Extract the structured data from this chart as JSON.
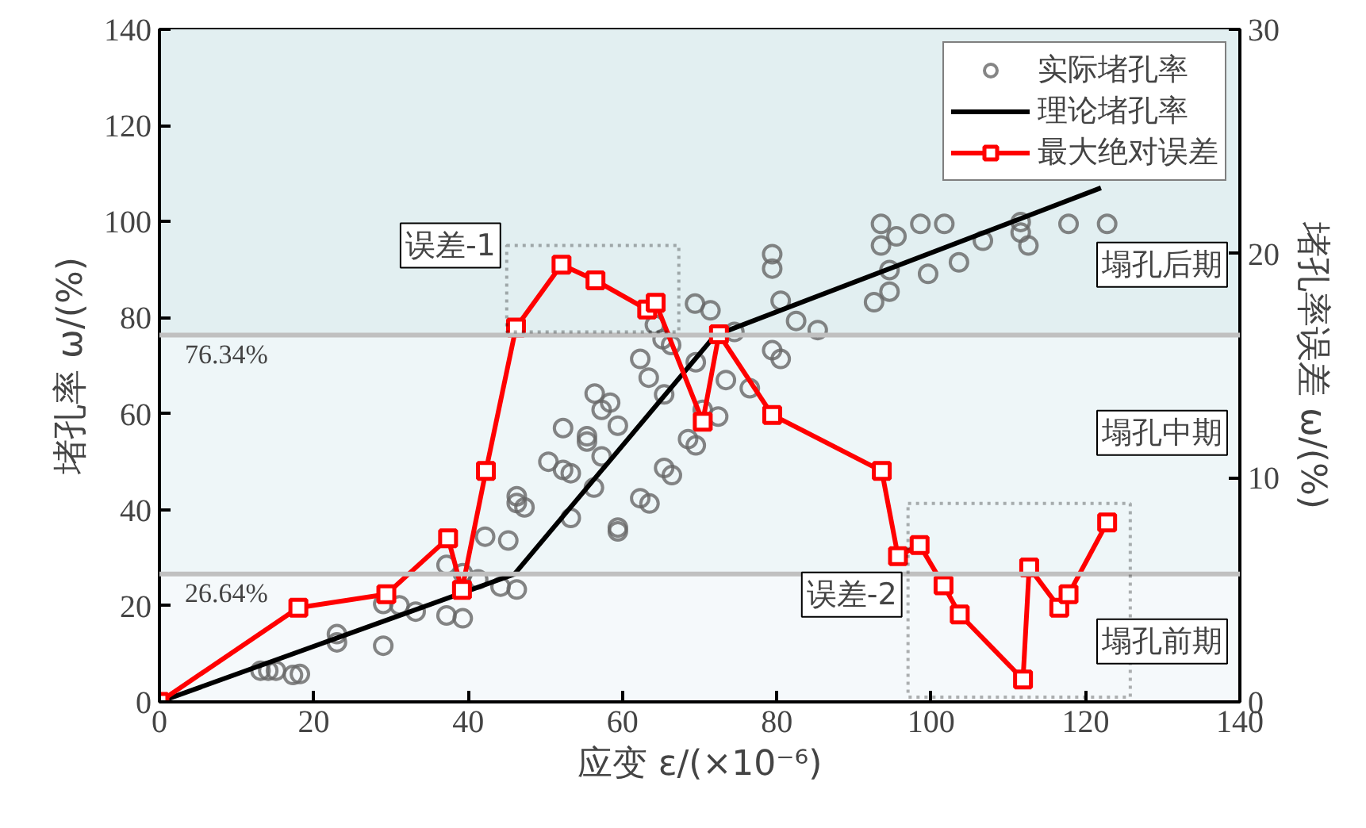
{
  "chart_data": {
    "type": "scatter",
    "xlabel": "应变 ε/(×10⁻⁶)",
    "ylabel": "堵孔率 ω/(%)",
    "y2label": "堵孔率误差 ω/(%)",
    "xlim": [
      0,
      140
    ],
    "xticks": [
      0,
      20,
      40,
      60,
      80,
      100,
      120,
      140
    ],
    "ylim": [
      0,
      140
    ],
    "yticks": [
      0,
      20,
      40,
      60,
      80,
      100,
      120,
      140
    ],
    "y2lim": [
      0,
      30
    ],
    "y2ticks": [
      0,
      10,
      20,
      30
    ],
    "legend": "top right",
    "series": [
      {
        "name": "实际堵孔率",
        "marker": "circle",
        "color": "#666666",
        "x": [
          13.1,
          14.1,
          15.1,
          17.3,
          18.2,
          23.0,
          23.0,
          29.0,
          29.0,
          31.1,
          33.2,
          37.2,
          37.2,
          39.3,
          39.3,
          41.3,
          42.2,
          45.2,
          44.2,
          46.3,
          46.3,
          46.3,
          47.3,
          50.4,
          52.3,
          52.3,
          53.3,
          55.4,
          55.4,
          56.4,
          57.3,
          58.4,
          59.4,
          57.3,
          56.3,
          53.3,
          59.4,
          59.4,
          62.3,
          63.5,
          65.4,
          66.4,
          62.3,
          63.4,
          65.4,
          64.2,
          65.2,
          66.3,
          68.5,
          69.5,
          69.4,
          71.4,
          69.5,
          70.4,
          72.4,
          73.4,
          74.5,
          76.5,
          79.4,
          79.4,
          80.5,
          82.5,
          79.4,
          80.5,
          85.3,
          93.5,
          93.5,
          95.5,
          98.6,
          101.7,
          94.6,
          94.6,
          92.6,
          99.6,
          103.6,
          106.7,
          111.6,
          111.6,
          112.6,
          117.8,
          122.8
        ],
        "values": [
          6.5,
          6.5,
          6.5,
          5.6,
          5.8,
          14.1,
          12.4,
          20.4,
          11.7,
          20.1,
          18.8,
          28.5,
          18.0,
          26.8,
          17.4,
          25.5,
          34.4,
          33.6,
          24.0,
          23.4,
          42.8,
          41.4,
          40.5,
          50.0,
          57.0,
          48.3,
          47.6,
          55.3,
          54.2,
          64.2,
          60.8,
          62.3,
          57.5,
          51.1,
          44.6,
          38.3,
          36.3,
          35.5,
          42.4,
          41.3,
          48.7,
          47.2,
          71.4,
          67.5,
          64.0,
          78.5,
          75.5,
          74.3,
          54.7,
          53.4,
          82.9,
          81.5,
          70.7,
          60.8,
          59.4,
          67.0,
          77.0,
          65.3,
          93.2,
          90.2,
          83.5,
          79.3,
          73.2,
          71.4,
          77.4,
          99.5,
          95.0,
          96.9,
          99.5,
          99.5,
          89.9,
          85.4,
          83.2,
          89.1,
          91.5,
          96.0,
          99.9,
          97.7,
          95.0,
          99.5,
          99.5
        ]
      },
      {
        "name": "理论堵孔率",
        "type": "line",
        "marker": "none",
        "color": "#000000",
        "x": [
          0,
          46,
          72,
          122
        ],
        "values": [
          0,
          26.6,
          76.3,
          107
        ]
      },
      {
        "name": "最大绝对误差",
        "type": "line",
        "marker": "square",
        "axis": "y2",
        "color": "#ff0000",
        "x": [
          0,
          18,
          29.4,
          37.4,
          39.2,
          42.3,
          46.2,
          52.1,
          56.5,
          63.2,
          64.3,
          70.4,
          72.5,
          79.4,
          93.6,
          95.7,
          98.5,
          101.6,
          103.7,
          111.9,
          112.7,
          116.6,
          117.8,
          122.8
        ],
        "values": [
          0,
          4.2,
          4.8,
          7.3,
          5.0,
          10.3,
          16.7,
          19.5,
          18.8,
          17.5,
          17.8,
          12.5,
          16.4,
          12.8,
          10.3,
          6.5,
          7.0,
          5.2,
          3.9,
          1.0,
          6.0,
          4.2,
          4.8,
          8.0
        ]
      }
    ],
    "ref_lines": [
      {
        "axis": "y",
        "value": 26.64,
        "label": "26.64%",
        "color": "#c0c0c0"
      },
      {
        "axis": "y",
        "value": 76.34,
        "label": "76.34%",
        "color": "#c0c0c0"
      }
    ],
    "bands": [
      {
        "axis": "y",
        "from": 0,
        "to": 26.64,
        "color": "#f5f9fb"
      },
      {
        "axis": "y",
        "from": 26.64,
        "to": 76.34,
        "color": "#eef6f8"
      },
      {
        "axis": "y",
        "from": 76.34,
        "to": 140,
        "color": "#e2eff1"
      }
    ],
    "annotations": [
      {
        "text": "误差-1",
        "x": 45,
        "y": 77
      },
      {
        "text": "误差-2",
        "x": 97,
        "y": 1
      },
      "塌孔后期",
      "塌孔中期",
      "塌孔前期"
    ]
  }
}
